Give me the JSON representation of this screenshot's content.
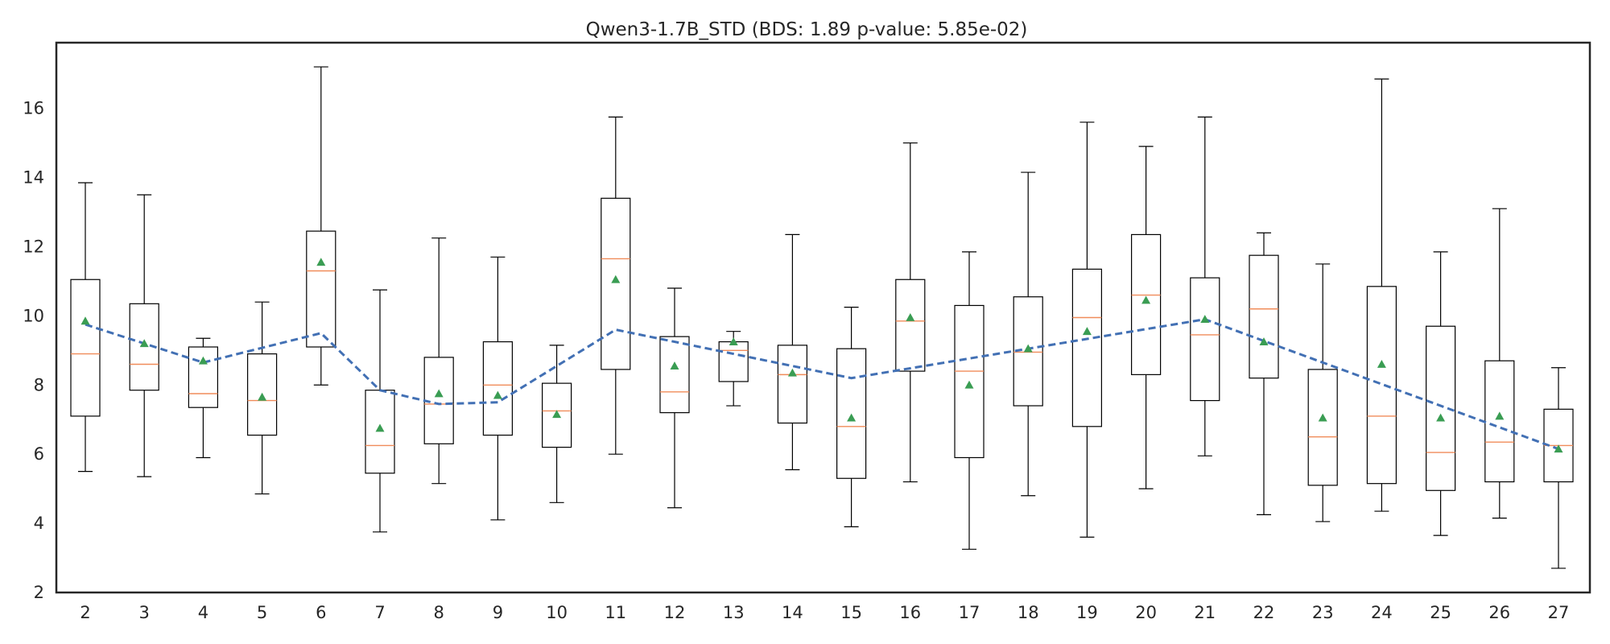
{
  "chart_data": {
    "type": "box",
    "title": "Qwen3-1.7B_STD (BDS: 1.89 p-value: 5.85e-02)",
    "xlabel": "",
    "ylabel": "",
    "ylim": [
      2,
      17.9
    ],
    "yticks": [
      2,
      4,
      6,
      8,
      10,
      12,
      14,
      16
    ],
    "grid": false,
    "categories": [
      "2",
      "3",
      "4",
      "5",
      "6",
      "7",
      "8",
      "9",
      "10",
      "11",
      "12",
      "13",
      "14",
      "15",
      "16",
      "17",
      "18",
      "19",
      "20",
      "21",
      "22",
      "23",
      "24",
      "25",
      "26",
      "27"
    ],
    "boxes": [
      {
        "whislo": 5.5,
        "q1": 7.1,
        "med": 8.9,
        "q3": 11.05,
        "whishi": 13.85,
        "mean": 9.85
      },
      {
        "whislo": 5.35,
        "q1": 7.85,
        "med": 8.6,
        "q3": 10.35,
        "whishi": 13.5,
        "mean": 9.2
      },
      {
        "whislo": 5.9,
        "q1": 7.35,
        "med": 7.75,
        "q3": 9.1,
        "whishi": 9.35,
        "mean": 8.7
      },
      {
        "whislo": 4.85,
        "q1": 6.55,
        "med": 7.55,
        "q3": 8.9,
        "whishi": 10.4,
        "mean": 7.65
      },
      {
        "whislo": 8.0,
        "q1": 9.1,
        "med": 11.3,
        "q3": 12.45,
        "whishi": 17.2,
        "mean": 11.55
      },
      {
        "whislo": 3.75,
        "q1": 5.45,
        "med": 6.25,
        "q3": 7.85,
        "whishi": 10.75,
        "mean": 6.75
      },
      {
        "whislo": 5.15,
        "q1": 6.3,
        "med": 7.45,
        "q3": 8.8,
        "whishi": 12.25,
        "mean": 7.75
      },
      {
        "whislo": 4.1,
        "q1": 6.55,
        "med": 8.0,
        "q3": 9.25,
        "whishi": 11.7,
        "mean": 7.7
      },
      {
        "whislo": 4.6,
        "q1": 6.2,
        "med": 7.25,
        "q3": 8.05,
        "whishi": 9.15,
        "mean": 7.15
      },
      {
        "whislo": 6.0,
        "q1": 8.45,
        "med": 11.65,
        "q3": 13.4,
        "whishi": 15.75,
        "mean": 11.05
      },
      {
        "whislo": 4.45,
        "q1": 7.2,
        "med": 7.8,
        "q3": 9.4,
        "whishi": 10.8,
        "mean": 8.55
      },
      {
        "whislo": 7.4,
        "q1": 8.1,
        "med": 9.0,
        "q3": 9.25,
        "whishi": 9.55,
        "mean": 9.25
      },
      {
        "whislo": 5.55,
        "q1": 6.9,
        "med": 8.3,
        "q3": 9.15,
        "whishi": 12.35,
        "mean": 8.35
      },
      {
        "whislo": 3.9,
        "q1": 5.3,
        "med": 6.8,
        "q3": 9.05,
        "whishi": 10.25,
        "mean": 7.05
      },
      {
        "whislo": 5.2,
        "q1": 8.4,
        "med": 9.85,
        "q3": 11.05,
        "whishi": 15.0,
        "mean": 9.95
      },
      {
        "whislo": 3.25,
        "q1": 5.9,
        "med": 8.4,
        "q3": 10.3,
        "whishi": 11.85,
        "mean": 8.0
      },
      {
        "whislo": 4.8,
        "q1": 7.4,
        "med": 8.95,
        "q3": 10.55,
        "whishi": 14.15,
        "mean": 9.05
      },
      {
        "whislo": 3.6,
        "q1": 6.8,
        "med": 9.95,
        "q3": 11.35,
        "whishi": 15.6,
        "mean": 9.55
      },
      {
        "whislo": 5.0,
        "q1": 8.3,
        "med": 10.6,
        "q3": 12.35,
        "whishi": 14.9,
        "mean": 10.45
      },
      {
        "whislo": 5.95,
        "q1": 7.55,
        "med": 9.45,
        "q3": 11.1,
        "whishi": 15.75,
        "mean": 9.9
      },
      {
        "whislo": 4.25,
        "q1": 8.2,
        "med": 10.2,
        "q3": 11.75,
        "whishi": 12.4,
        "mean": 9.25
      },
      {
        "whislo": 4.05,
        "q1": 5.1,
        "med": 6.5,
        "q3": 8.45,
        "whishi": 11.5,
        "mean": 7.05
      },
      {
        "whislo": 4.35,
        "q1": 5.15,
        "med": 7.1,
        "q3": 10.85,
        "whishi": 16.85,
        "mean": 8.6
      },
      {
        "whislo": 3.65,
        "q1": 4.95,
        "med": 6.05,
        "q3": 9.7,
        "whishi": 11.85,
        "mean": 7.05
      },
      {
        "whislo": 4.15,
        "q1": 5.2,
        "med": 6.35,
        "q3": 8.7,
        "whishi": 13.1,
        "mean": 7.1
      },
      {
        "whislo": 2.7,
        "q1": 5.2,
        "med": 6.25,
        "q3": 7.3,
        "whishi": 8.5,
        "mean": 6.15
      }
    ],
    "trend_line": {
      "style": "dashed",
      "points": [
        {
          "x": "2",
          "y": 9.75
        },
        {
          "x": "4",
          "y": 8.65
        },
        {
          "x": "6",
          "y": 9.5
        },
        {
          "x": "7",
          "y": 7.85
        },
        {
          "x": "8",
          "y": 7.45
        },
        {
          "x": "9",
          "y": 7.5
        },
        {
          "x": "11",
          "y": 9.6
        },
        {
          "x": "15",
          "y": 8.2
        },
        {
          "x": "21",
          "y": 9.9
        },
        {
          "x": "27",
          "y": 6.15
        }
      ]
    },
    "colors": {
      "box": "#000000",
      "median": "#f08c5a",
      "mean": "#3a9d53",
      "trend": "#4270b4",
      "axes": "#262626"
    }
  }
}
